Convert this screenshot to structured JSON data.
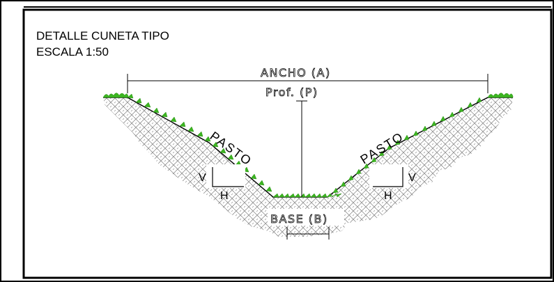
{
  "title": {
    "line1": "DETALLE CUNETA TIPO",
    "line2": "ESCALA 1:50"
  },
  "labels": {
    "ancho": "ANCHO (A)",
    "prof": "Prof. (P)",
    "base": "BASE (B)",
    "grass_left": "PASTO",
    "grass_right": "PASTO",
    "v_left": "V",
    "h_left": "H",
    "v_right": "V",
    "h_right": "H"
  },
  "colors": {
    "frame": "#000000",
    "grass": "#3cb521",
    "soil_hatch": "#8a8a8a",
    "line": "#000000"
  }
}
